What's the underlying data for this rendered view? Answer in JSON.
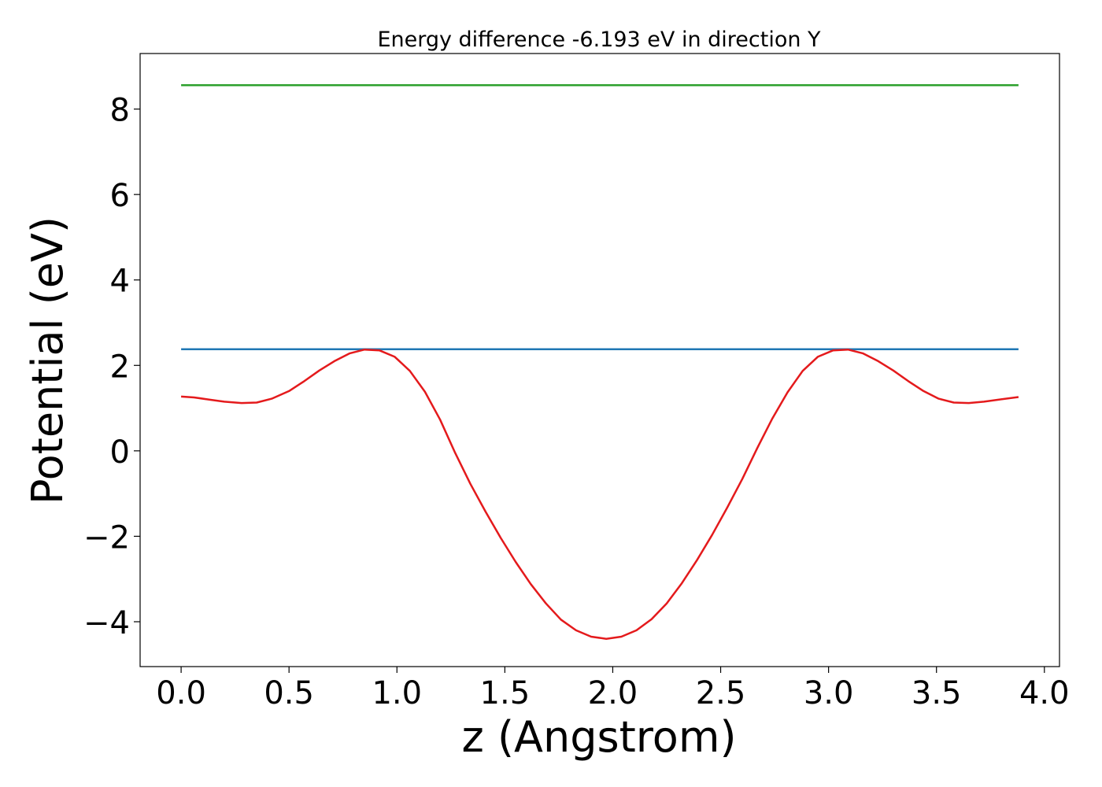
{
  "chart_data": {
    "type": "line",
    "title": "Energy difference -6.193 eV in direction Y",
    "xlabel": "z (Angstrom)",
    "ylabel": "Potential (eV)",
    "xlim": [
      -0.19,
      4.07
    ],
    "ylim": [
      -5.05,
      9.3
    ],
    "xticks": [
      0.0,
      0.5,
      1.0,
      1.5,
      2.0,
      2.5,
      3.0,
      3.5,
      4.0
    ],
    "xtick_labels": [
      "0.0",
      "0.5",
      "1.0",
      "1.5",
      "2.0",
      "2.5",
      "3.0",
      "3.5",
      "4.0"
    ],
    "yticks": [
      -4,
      -2,
      0,
      2,
      4,
      6,
      8
    ],
    "ytick_labels": [
      "−4",
      "−2",
      "0",
      "2",
      "4",
      "6",
      "8"
    ],
    "grid": false,
    "series": [
      {
        "color": "#2ca02c",
        "style": "hline",
        "x": [
          0.0,
          3.88
        ],
        "y": [
          8.56,
          8.56
        ]
      },
      {
        "color": "#1f77b4",
        "style": "hline",
        "x": [
          0.0,
          3.88
        ],
        "y": [
          2.38,
          2.38
        ]
      },
      {
        "color": "#e41a1c",
        "style": "line",
        "x": [
          0.0,
          0.06,
          0.13,
          0.2,
          0.28,
          0.35,
          0.42,
          0.5,
          0.57,
          0.64,
          0.71,
          0.78,
          0.85,
          0.92,
          0.99,
          1.06,
          1.13,
          1.2,
          1.27,
          1.34,
          1.41,
          1.48,
          1.55,
          1.62,
          1.69,
          1.76,
          1.83,
          1.9,
          1.97,
          2.04,
          2.11,
          2.18,
          2.25,
          2.32,
          2.39,
          2.46,
          2.53,
          2.6,
          2.67,
          2.74,
          2.81,
          2.88,
          2.95,
          3.02,
          3.09,
          3.16,
          3.23,
          3.3,
          3.37,
          3.44,
          3.51,
          3.58,
          3.65,
          3.72,
          3.79,
          3.88
        ],
        "y": [
          1.27,
          1.25,
          1.2,
          1.15,
          1.12,
          1.13,
          1.22,
          1.4,
          1.63,
          1.88,
          2.1,
          2.28,
          2.37,
          2.35,
          2.2,
          1.87,
          1.38,
          0.73,
          -0.05,
          -0.77,
          -1.42,
          -2.03,
          -2.6,
          -3.12,
          -3.57,
          -3.95,
          -4.2,
          -4.35,
          -4.4,
          -4.35,
          -4.2,
          -3.94,
          -3.57,
          -3.1,
          -2.56,
          -1.97,
          -1.33,
          -0.66,
          0.07,
          0.76,
          1.37,
          1.87,
          2.2,
          2.35,
          2.37,
          2.28,
          2.1,
          1.88,
          1.63,
          1.4,
          1.22,
          1.13,
          1.12,
          1.15,
          1.2,
          1.26
        ]
      }
    ]
  }
}
